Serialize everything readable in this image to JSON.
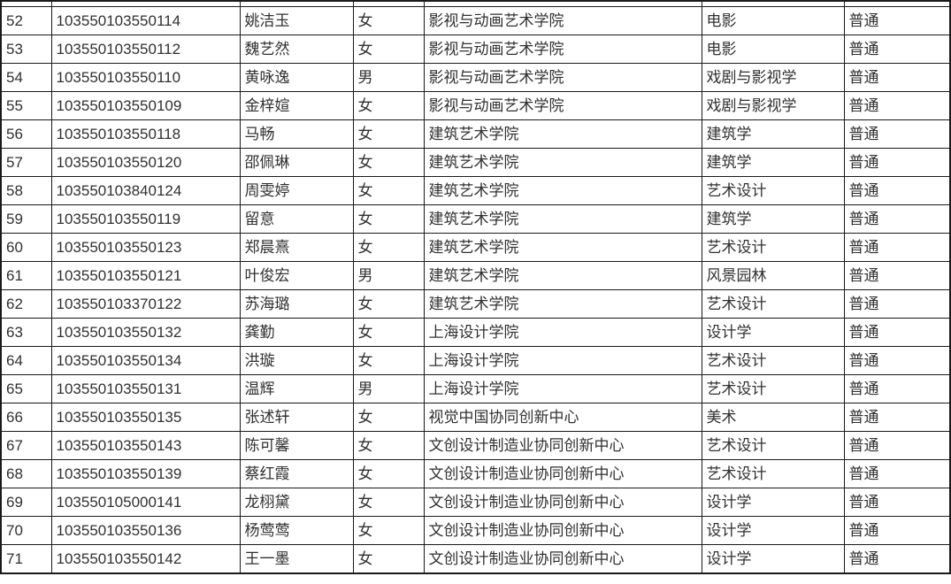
{
  "table": {
    "description": "student admission roster table (cropped view, rows 52-71)",
    "columns": [
      "index",
      "candidate_id",
      "name",
      "gender",
      "college",
      "major",
      "type"
    ],
    "rows": [
      [
        "52",
        "103550103550114",
        "姚洁玉",
        "女",
        "影视与动画艺术学院",
        "电影",
        "普通"
      ],
      [
        "53",
        "103550103550112",
        "魏艺然",
        "女",
        "影视与动画艺术学院",
        "电影",
        "普通"
      ],
      [
        "54",
        "103550103550110",
        "黄咏逸",
        "男",
        "影视与动画艺术学院",
        "戏剧与影视学",
        "普通"
      ],
      [
        "55",
        "103550103550109",
        "金梓媗",
        "女",
        "影视与动画艺术学院",
        "戏剧与影视学",
        "普通"
      ],
      [
        "56",
        "103550103550118",
        "马畅",
        "女",
        "建筑艺术学院",
        "建筑学",
        "普通"
      ],
      [
        "57",
        "103550103550120",
        "邵佩琳",
        "女",
        "建筑艺术学院",
        "建筑学",
        "普通"
      ],
      [
        "58",
        "103550103840124",
        "周雯婷",
        "女",
        "建筑艺术学院",
        "艺术设计",
        "普通"
      ],
      [
        "59",
        "103550103550119",
        "留意",
        "女",
        "建筑艺术学院",
        "建筑学",
        "普通"
      ],
      [
        "60",
        "103550103550123",
        "郑晨熹",
        "女",
        "建筑艺术学院",
        "艺术设计",
        "普通"
      ],
      [
        "61",
        "103550103550121",
        "叶俊宏",
        "男",
        "建筑艺术学院",
        "风景园林",
        "普通"
      ],
      [
        "62",
        "103550103370122",
        "苏海璐",
        "女",
        "建筑艺术学院",
        "艺术设计",
        "普通"
      ],
      [
        "63",
        "103550103550132",
        "龚勤",
        "女",
        "上海设计学院",
        "设计学",
        "普通"
      ],
      [
        "64",
        "103550103550134",
        "洪璇",
        "女",
        "上海设计学院",
        "艺术设计",
        "普通"
      ],
      [
        "65",
        "103550103550131",
        "温辉",
        "男",
        "上海设计学院",
        "艺术设计",
        "普通"
      ],
      [
        "66",
        "103550103550135",
        "张述轩",
        "女",
        "视觉中国协同创新中心",
        "美术",
        "普通"
      ],
      [
        "67",
        "103550103550143",
        "陈可馨",
        "女",
        "文创设计制造业协同创新中心",
        "艺术设计",
        "普通"
      ],
      [
        "68",
        "103550103550139",
        "蔡红霞",
        "女",
        "文创设计制造业协同创新中心",
        "艺术设计",
        "普通"
      ],
      [
        "69",
        "103550105000141",
        "龙栩黛",
        "女",
        "文创设计制造业协同创新中心",
        "设计学",
        "普通"
      ],
      [
        "70",
        "103550103550136",
        "杨莺莺",
        "女",
        "文创设计制造业协同创新中心",
        "设计学",
        "普通"
      ],
      [
        "71",
        "103550103550142",
        "王一墨",
        "女",
        "文创设计制造业协同创新中心",
        "设计学",
        "普通"
      ]
    ],
    "colors": {
      "border": "#1a1a1a",
      "text": "#303030",
      "background": "#ffffff"
    }
  }
}
